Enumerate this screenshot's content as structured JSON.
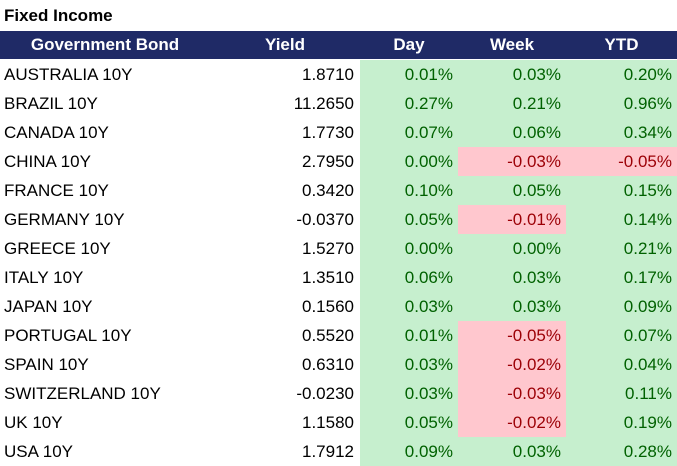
{
  "title": "Fixed Income",
  "headers": {
    "bond": "Government Bond",
    "yield": "Yield",
    "day": "Day",
    "week": "Week",
    "ytd": "YTD"
  },
  "colors": {
    "header_bg": "#1f2a66",
    "positive_bg": "#c6efce",
    "positive_text": "#006100",
    "negative_bg": "#ffc7ce",
    "negative_text": "#9c0006"
  },
  "rows": [
    {
      "bond": "AUSTRALIA 10Y",
      "yield": "1.8710",
      "day": "0.01%",
      "week": "0.03%",
      "ytd": "0.20%",
      "day_neg": false,
      "week_neg": false,
      "ytd_neg": false
    },
    {
      "bond": "BRAZIL 10Y",
      "yield": "11.2650",
      "day": "0.27%",
      "week": "0.21%",
      "ytd": "0.96%",
      "day_neg": false,
      "week_neg": false,
      "ytd_neg": false
    },
    {
      "bond": "CANADA 10Y",
      "yield": "1.7730",
      "day": "0.07%",
      "week": "0.06%",
      "ytd": "0.34%",
      "day_neg": false,
      "week_neg": false,
      "ytd_neg": false
    },
    {
      "bond": "CHINA 10Y",
      "yield": "2.7950",
      "day": "0.00%",
      "week": "-0.03%",
      "ytd": "-0.05%",
      "day_neg": false,
      "week_neg": true,
      "ytd_neg": true
    },
    {
      "bond": "FRANCE 10Y",
      "yield": "0.3420",
      "day": "0.10%",
      "week": "0.05%",
      "ytd": "0.15%",
      "day_neg": false,
      "week_neg": false,
      "ytd_neg": false
    },
    {
      "bond": "GERMANY 10Y",
      "yield": "-0.0370",
      "day": "0.05%",
      "week": "-0.01%",
      "ytd": "0.14%",
      "day_neg": false,
      "week_neg": true,
      "ytd_neg": false
    },
    {
      "bond": "GREECE 10Y",
      "yield": "1.5270",
      "day": "0.00%",
      "week": "0.00%",
      "ytd": "0.21%",
      "day_neg": false,
      "week_neg": false,
      "ytd_neg": false
    },
    {
      "bond": "ITALY 10Y",
      "yield": "1.3510",
      "day": "0.06%",
      "week": "0.03%",
      "ytd": "0.17%",
      "day_neg": false,
      "week_neg": false,
      "ytd_neg": false
    },
    {
      "bond": "JAPAN 10Y",
      "yield": "0.1560",
      "day": "0.03%",
      "week": "0.03%",
      "ytd": "0.09%",
      "day_neg": false,
      "week_neg": false,
      "ytd_neg": false
    },
    {
      "bond": "PORTUGAL 10Y",
      "yield": "0.5520",
      "day": "0.01%",
      "week": "-0.05%",
      "ytd": "0.07%",
      "day_neg": false,
      "week_neg": true,
      "ytd_neg": false
    },
    {
      "bond": "SPAIN 10Y",
      "yield": "0.6310",
      "day": "0.03%",
      "week": "-0.02%",
      "ytd": "0.04%",
      "day_neg": false,
      "week_neg": true,
      "ytd_neg": false
    },
    {
      "bond": "SWITZERLAND 10Y",
      "yield": "-0.0230",
      "day": "0.03%",
      "week": "-0.03%",
      "ytd": "0.11%",
      "day_neg": false,
      "week_neg": true,
      "ytd_neg": false
    },
    {
      "bond": "UK 10Y",
      "yield": "1.1580",
      "day": "0.05%",
      "week": "-0.02%",
      "ytd": "0.19%",
      "day_neg": false,
      "week_neg": true,
      "ytd_neg": false
    },
    {
      "bond": "USA 10Y",
      "yield": "1.7912",
      "day": "0.09%",
      "week": "0.03%",
      "ytd": "0.28%",
      "day_neg": false,
      "week_neg": false,
      "ytd_neg": false
    }
  ]
}
